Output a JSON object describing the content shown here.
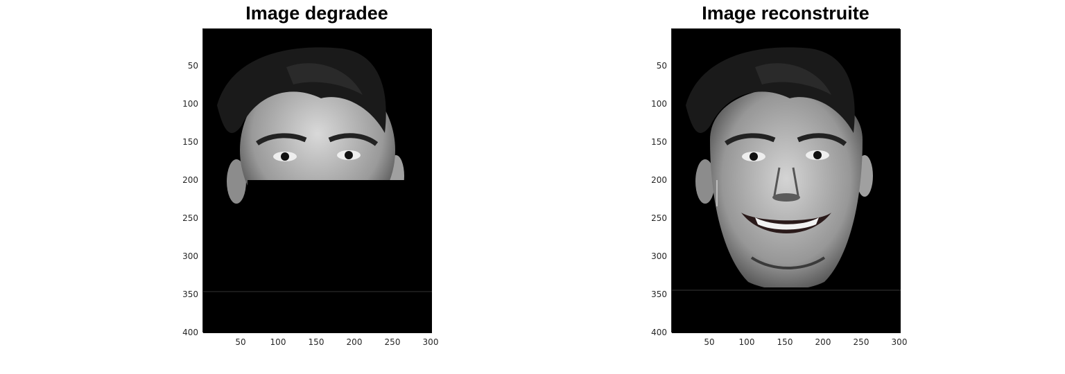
{
  "panels": [
    {
      "title": "Image degradee",
      "yticks": [
        "50",
        "100",
        "150",
        "200",
        "250",
        "300",
        "350",
        "400"
      ],
      "xticks": [
        "50",
        "100",
        "150",
        "200",
        "250",
        "300"
      ],
      "x_range": [
        0,
        300
      ],
      "y_range": [
        0,
        400
      ]
    },
    {
      "title": "Image reconstruite",
      "yticks": [
        "50",
        "100",
        "150",
        "200",
        "250",
        "300",
        "350",
        "400"
      ],
      "xticks": [
        "50",
        "100",
        "150",
        "200",
        "250",
        "300"
      ],
      "x_range": [
        0,
        300
      ],
      "y_range": [
        0,
        400
      ]
    }
  ],
  "colors": {
    "background": "#ffffff",
    "image_bg": "#000000",
    "axis": "#262626"
  }
}
